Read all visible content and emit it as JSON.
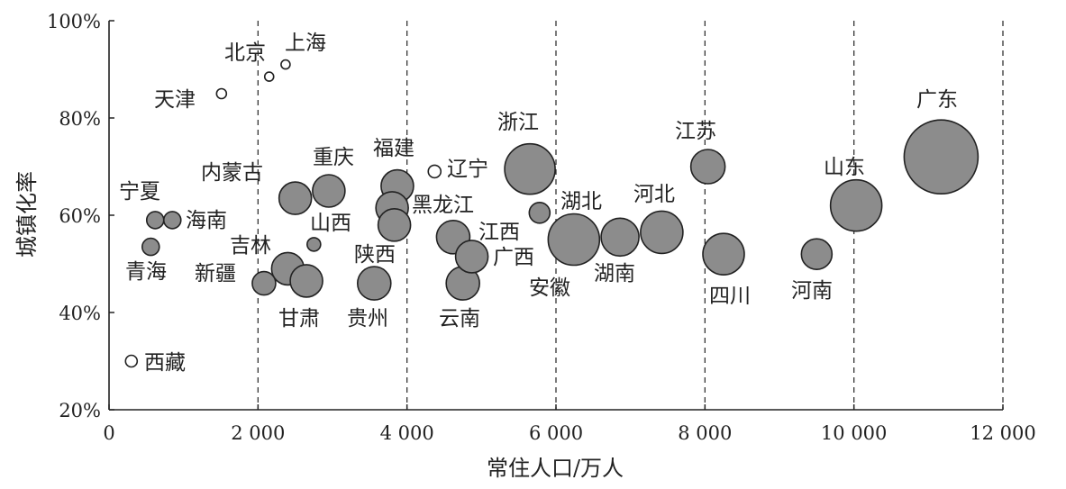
{
  "chart_data": {
    "type": "scatter",
    "xlabel": "常住人口/万人",
    "ylabel": "城镇化率",
    "xlim": [
      0,
      12000
    ],
    "ylim": [
      20,
      100
    ],
    "x_ticks": [
      0,
      2000,
      4000,
      6000,
      8000,
      10000,
      12000
    ],
    "x_tick_labels": [
      "0",
      "2 000",
      "4 000",
      "6 000",
      "8 000",
      "10 000",
      "12 000"
    ],
    "y_ticks": [
      20,
      40,
      60,
      80,
      100
    ],
    "y_tick_labels": [
      "20%",
      "40%",
      "60%",
      "80%",
      "100%"
    ],
    "vertical_gridlines": [
      2000,
      4000,
      6000,
      8000,
      10000,
      12000
    ],
    "gridline_style": "dashed",
    "marker_fill_large": "#8c8c8c",
    "marker_fill_small": "#ffffff",
    "marker_stroke": "#222222",
    "points": [
      {
        "name": "北京",
        "x": 2150,
        "y": 88.5,
        "small": true
      },
      {
        "name": "上海",
        "x": 2370,
        "y": 91,
        "small": true
      },
      {
        "name": "天津",
        "x": 1510,
        "y": 85,
        "small": true
      },
      {
        "name": "辽宁",
        "x": 4370,
        "y": 69,
        "small": true
      },
      {
        "name": "西藏",
        "x": 300,
        "y": 30,
        "small": true
      },
      {
        "name": "宁夏",
        "x": 620,
        "y": 59,
        "small": false
      },
      {
        "name": "海南",
        "x": 850,
        "y": 59,
        "small": false
      },
      {
        "name": "青海",
        "x": 560,
        "y": 53.5,
        "small": false
      },
      {
        "name": "内蒙古",
        "x": 2500,
        "y": 63.5,
        "small": false
      },
      {
        "name": "重庆",
        "x": 2950,
        "y": 65,
        "small": false
      },
      {
        "name": "福建",
        "x": 3870,
        "y": 66,
        "small": false
      },
      {
        "name": "山西",
        "x": 2750,
        "y": 54,
        "small": false
      },
      {
        "name": "吉林",
        "x": 2400,
        "y": 49,
        "small": false
      },
      {
        "name": "新疆",
        "x": 2080,
        "y": 46,
        "small": false
      },
      {
        "name": "甘肃",
        "x": 2650,
        "y": 46.5,
        "small": false
      },
      {
        "name": "黑龙江",
        "x": 3800,
        "y": 61.5,
        "small": false
      },
      {
        "name": "陕西",
        "x": 3830,
        "y": 58,
        "small": false
      },
      {
        "name": "贵州",
        "x": 3560,
        "y": 46,
        "small": false
      },
      {
        "name": "浙江",
        "x": 5650,
        "y": 69.5,
        "small": false
      },
      {
        "name": "江西",
        "x": 4620,
        "y": 55.5,
        "small": false
      },
      {
        "name": "广西",
        "x": 4870,
        "y": 51.5,
        "small": false
      },
      {
        "name": "云南",
        "x": 4750,
        "y": 46,
        "small": false
      },
      {
        "name": "湖北",
        "x": 5780,
        "y": 60.5,
        "small": false
      },
      {
        "name": "安徽",
        "x": 6240,
        "y": 55,
        "small": false
      },
      {
        "name": "湖南",
        "x": 6860,
        "y": 55.5,
        "small": false
      },
      {
        "name": "河北",
        "x": 7420,
        "y": 56.5,
        "small": false
      },
      {
        "name": "江苏",
        "x": 8040,
        "y": 70,
        "small": false
      },
      {
        "name": "四川",
        "x": 8250,
        "y": 52,
        "small": false
      },
      {
        "name": "河南",
        "x": 9500,
        "y": 52,
        "small": false
      },
      {
        "name": "山东",
        "x": 10030,
        "y": 62,
        "small": false
      },
      {
        "name": "广东",
        "x": 11170,
        "y": 72,
        "small": false
      }
    ]
  }
}
